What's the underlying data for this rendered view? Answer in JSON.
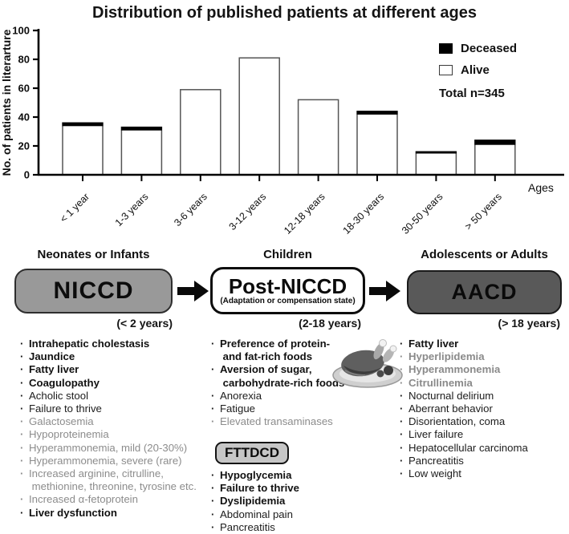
{
  "chart": {
    "title": "Distribution of published patients at different ages",
    "y_axis_label": "No. of patients in literarture",
    "x_axis_label": "Ages",
    "legend": {
      "deceased_label": "Deceased",
      "alive_label": "Alive",
      "total_label": "Total n=345"
    }
  },
  "chart_data": {
    "type": "bar",
    "stacked": true,
    "title": "Distribution of published patients at different ages",
    "ylabel": "No. of patients in literarture",
    "xlabel": "Ages",
    "ylim": [
      0,
      100
    ],
    "yticks": [
      0,
      20,
      40,
      60,
      80,
      100
    ],
    "grid": false,
    "legend_position": "upper right",
    "categories": [
      "< 1 year",
      "1-3 years",
      "3-6 years",
      "3-12 years",
      "12-18 years",
      "18-30 years",
      "30-50 years",
      "> 50 years"
    ],
    "series": [
      {
        "name": "Alive",
        "fill": "#ffffff",
        "values": [
          34,
          31,
          59,
          81,
          52,
          42,
          15,
          21
        ]
      },
      {
        "name": "Deceased",
        "fill": "#000000",
        "values": [
          2,
          2,
          0,
          0,
          0,
          2,
          1,
          3
        ]
      }
    ],
    "bar_totals": [
      36,
      33,
      59,
      81,
      52,
      44,
      16,
      24
    ],
    "total_n": 345
  },
  "flow": {
    "stages": [
      {
        "header": "Neonates or Infants",
        "box_label": "NICCD",
        "box_sub": "",
        "age_label": "(< 2 years)",
        "items": [
          {
            "text": "Intrahepatic cholestasis",
            "style": "bold"
          },
          {
            "text": "Jaundice",
            "style": "bold"
          },
          {
            "text": "Fatty liver",
            "style": "bold"
          },
          {
            "text": "Coagulopathy",
            "style": "bold"
          },
          {
            "text": "Acholic stool",
            "style": "normal"
          },
          {
            "text": "Failure to thrive",
            "style": "normal"
          },
          {
            "text": "Galactosemia",
            "style": "gray"
          },
          {
            "text": "Hypoproteinemia",
            "style": "gray"
          },
          {
            "text": "Hyperammonemia, mild (20-30%)",
            "style": "gray"
          },
          {
            "text": "Hyperammonemia, severe (rare)",
            "style": "gray"
          },
          {
            "text": "Increased arginine, citrulline,\n methionine, threonine, tyrosine etc.",
            "style": "gray"
          },
          {
            "text": "Increased α-fetoprotein",
            "style": "gray"
          },
          {
            "text": "Liver dysfunction",
            "style": "bold"
          }
        ]
      },
      {
        "header": "Children",
        "box_label": "Post-NICCD",
        "box_sub": "(Adaptation or compensation state)",
        "age_label": "(2-18 years)",
        "items": [
          {
            "text": "Preference of protein-\n and fat-rich foods",
            "style": "bold"
          },
          {
            "text": "Aversion of sugar,\n carbohydrate-rich foods",
            "style": "bold"
          },
          {
            "text": "Anorexia",
            "style": "normal"
          },
          {
            "text": "Fatigue",
            "style": "normal"
          },
          {
            "text": "Elevated transaminases",
            "style": "gray"
          }
        ],
        "sub_box_label": "FTTDCD",
        "sub_items": [
          {
            "text": "Hypoglycemia",
            "style": "bold"
          },
          {
            "text": "Failure to thrive",
            "style": "bold"
          },
          {
            "text": "Dyslipidemia",
            "style": "bold"
          },
          {
            "text": "Abdominal pain",
            "style": "normal"
          },
          {
            "text": "Pancreatitis",
            "style": "normal"
          }
        ]
      },
      {
        "header": "Adolescents or Adults",
        "box_label": "AACD",
        "box_sub": "",
        "age_label": "(> 18 years)",
        "items": [
          {
            "text": "Fatty liver",
            "style": "bold"
          },
          {
            "text": "Hyperlipidemia",
            "style": "graybold"
          },
          {
            "text": "Hyperammonemia",
            "style": "graybold"
          },
          {
            "text": "Citrullinemia",
            "style": "graybold"
          },
          {
            "text": "Nocturnal delirium",
            "style": "normal"
          },
          {
            "text": "Aberrant behavior",
            "style": "normal"
          },
          {
            "text": "Disorientation, coma",
            "style": "normal"
          },
          {
            "text": "Liver failure",
            "style": "normal"
          },
          {
            "text": "Hepatocellular carcinoma",
            "style": "normal"
          },
          {
            "text": "Pancreatitis",
            "style": "normal"
          },
          {
            "text": "Low weight",
            "style": "normal"
          }
        ]
      }
    ]
  },
  "icons": {
    "food_plate": "roast-meat-on-plate-icon",
    "arrow": "right-arrow-icon"
  },
  "colors": {
    "niccd_box_fill": "#999999",
    "aacd_box_fill": "#595959",
    "fttdcd_box_fill": "#c6c6c6",
    "gray_text": "#8c8c8c",
    "black_text": "#111111",
    "bar_stroke": "#555555",
    "deceased_fill": "#000000",
    "alive_fill": "#ffffff"
  }
}
